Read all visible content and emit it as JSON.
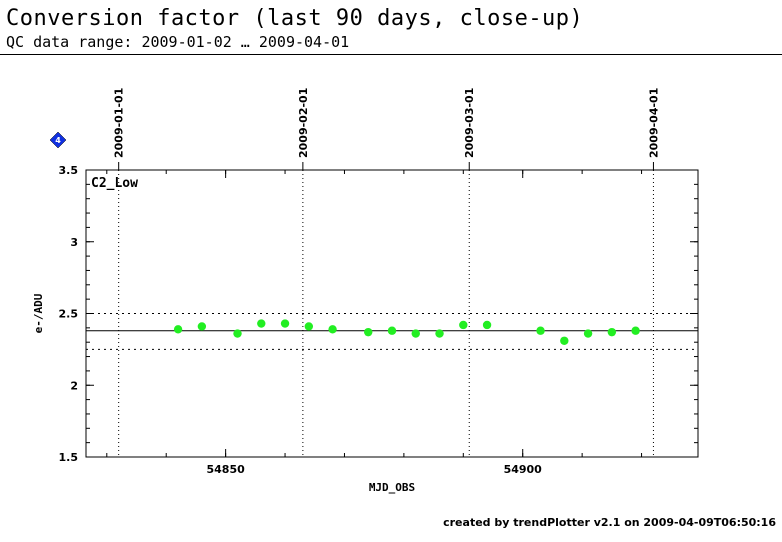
{
  "header": {
    "title": "Conversion factor (last 90 days, close-up)",
    "subtitle": "QC data range: 2009-01-02 … 2009-04-01"
  },
  "footer": {
    "text": "created by trendPlotter v2.1 on 2009-04-09T06:50:16"
  },
  "marker": {
    "label": "4",
    "color": "#1030e0"
  },
  "chart_data": {
    "type": "scatter",
    "panel_label": "C2_Low",
    "xlabel": "MJD_OBS",
    "ylabel": "e-/ADU",
    "xlim": [
      54826.5,
      54929.5
    ],
    "ylim": [
      1.5,
      3.5
    ],
    "x_ticks": [
      54850,
      54900
    ],
    "y_ticks": [
      1.5,
      2,
      2.5,
      3,
      3.5
    ],
    "y_tick_labels": [
      "1.5",
      "2",
      "2.5",
      "3",
      "3.5"
    ],
    "x_tick_labels": [
      "54850",
      "54900"
    ],
    "date_markers": [
      {
        "label": "2009-01-01",
        "x": 54832
      },
      {
        "label": "2009-02-01",
        "x": 54863
      },
      {
        "label": "2009-03-01",
        "x": 54891
      },
      {
        "label": "2009-04-01",
        "x": 54922
      }
    ],
    "reference_line": 2.38,
    "threshold_lines": [
      2.25,
      2.5
    ],
    "point_color": "#22ee22",
    "series": [
      {
        "x": [
          54842,
          54846,
          54852,
          54856,
          54860,
          54864,
          54868,
          54874,
          54878,
          54882,
          54886,
          54890,
          54894,
          54903,
          54907,
          54911,
          54915,
          54919
        ],
        "y": [
          2.39,
          2.41,
          2.36,
          2.43,
          2.43,
          2.41,
          2.39,
          2.37,
          2.38,
          2.36,
          2.36,
          2.42,
          2.42,
          2.38,
          2.31,
          2.36,
          2.37,
          2.38
        ]
      }
    ]
  }
}
